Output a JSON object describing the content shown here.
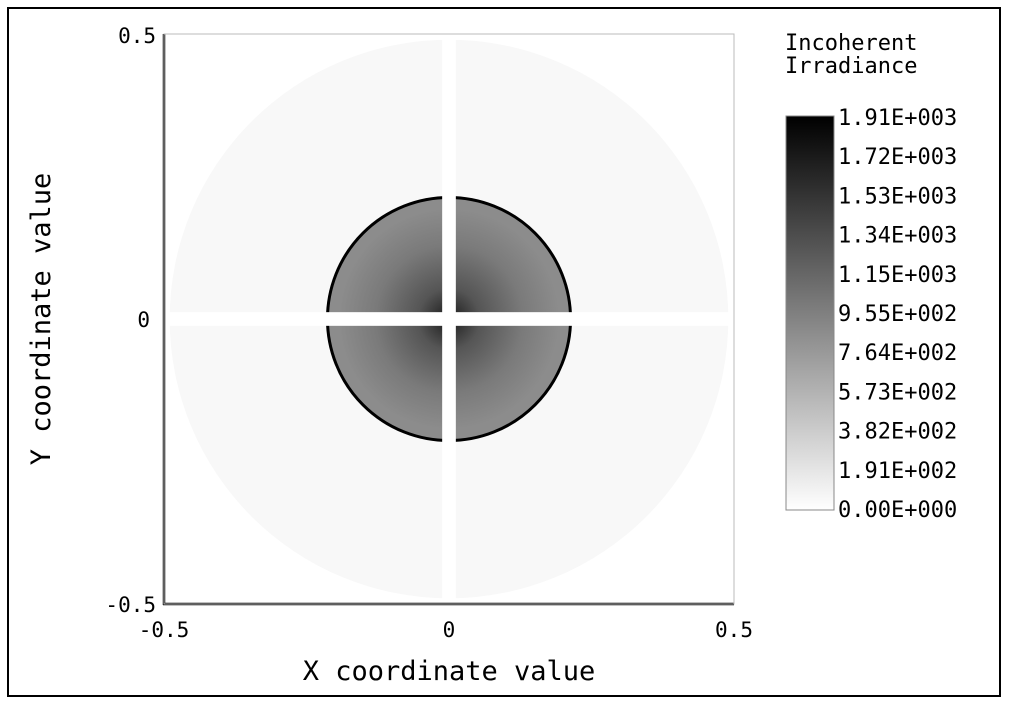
{
  "chart_data": {
    "type": "heatmap",
    "xlabel": "X coordinate value",
    "ylabel": "Y coordinate value",
    "xlim": [
      -0.5,
      0.5
    ],
    "ylim": [
      -0.5,
      0.5
    ],
    "x_ticks": [
      "-0.5",
      "0",
      "0.5"
    ],
    "y_ticks": [
      "-0.5",
      "0",
      "0.5"
    ],
    "grid": false,
    "colorbar": {
      "title_lines": [
        "Incoherent",
        "Irradiance"
      ],
      "placement": "right",
      "colormap": "grayscale (white = low, black = high)",
      "min": 0,
      "max": 1910,
      "labels": [
        "1.91E+003",
        "1.72E+003",
        "1.53E+003",
        "1.34E+003",
        "1.15E+003",
        "9.55E+002",
        "7.64E+002",
        "5.73E+002",
        "3.82E+002",
        "1.91E+002",
        "0.00E+000"
      ]
    },
    "features": {
      "outer_disk_radius": 0.49,
      "outer_disk_level": 50,
      "inner_disk_radius": 0.215,
      "inner_disk_level": 850,
      "center_peak_level": 1600,
      "edge_ring_level": 1910,
      "cross_bar_halfwidth": 0.012,
      "cross_bar_level": 0
    }
  }
}
